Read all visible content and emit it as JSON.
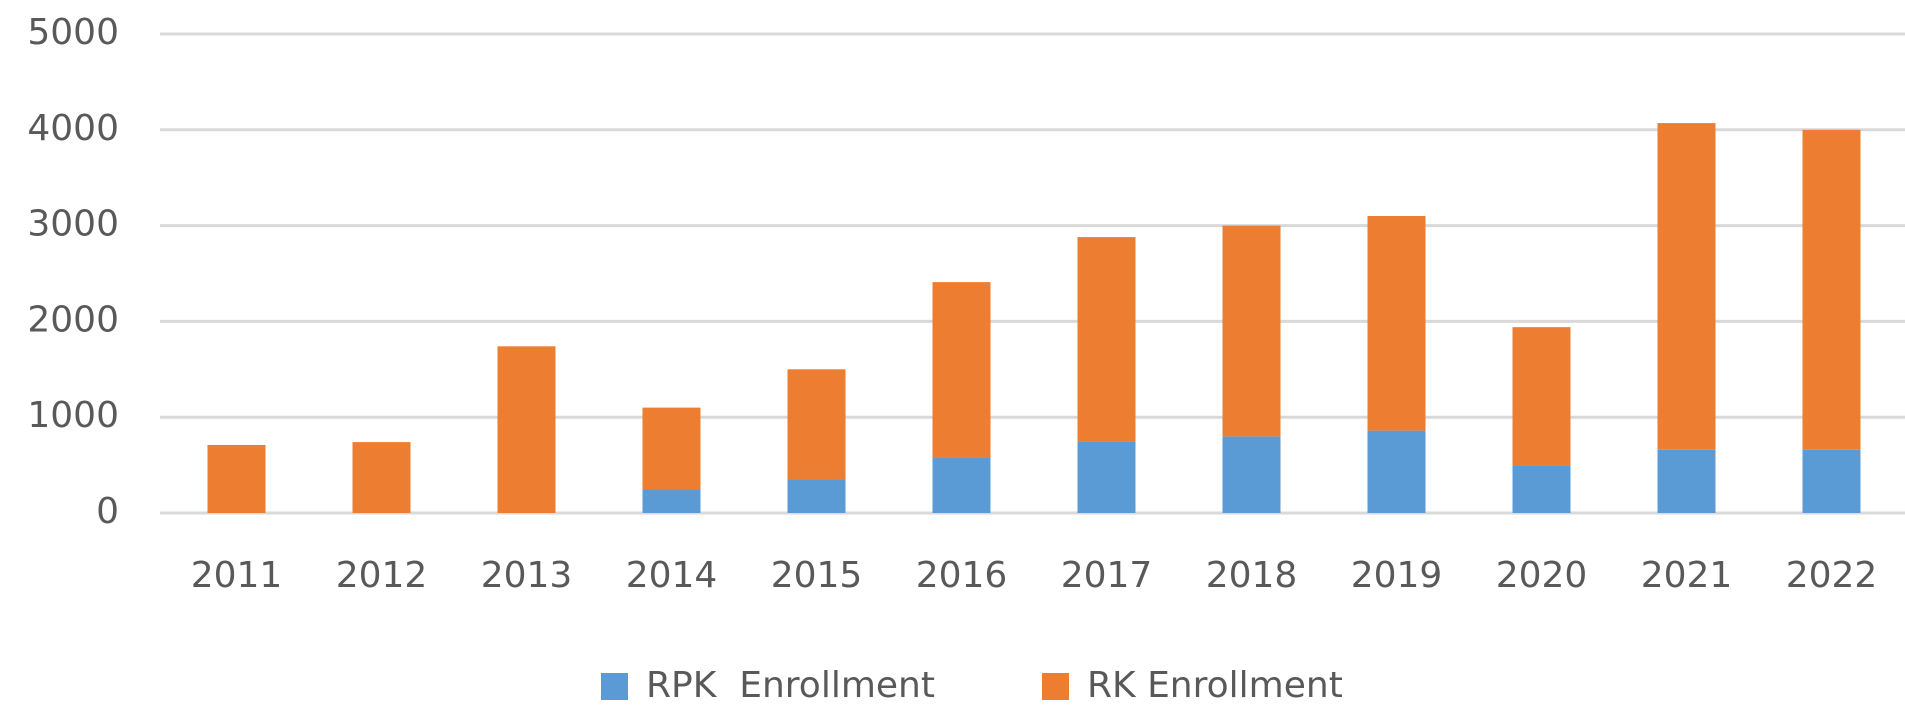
{
  "chart_data": {
    "type": "stacked_bar",
    "categories": [
      "2011",
      "2012",
      "2013",
      "2014",
      "2015",
      "2016",
      "2017",
      "2018",
      "2019",
      "2020",
      "2021",
      "2022"
    ],
    "series": [
      {
        "name": "RPK  Enrollment",
        "color": "#5b9bd5",
        "values": [
          0,
          0,
          0,
          250,
          350,
          580,
          750,
          800,
          860,
          500,
          660,
          660
        ]
      },
      {
        "name": "RK Enrollment",
        "color": "#ed7d31",
        "values": [
          710,
          740,
          1740,
          850,
          1150,
          1830,
          2130,
          2200,
          2240,
          1440,
          3410,
          3340
        ]
      }
    ],
    "ylim": [
      0,
      5000
    ],
    "yticks": [
      0,
      1000,
      2000,
      3000,
      4000,
      5000
    ],
    "grid": true,
    "legend": "bottom"
  }
}
